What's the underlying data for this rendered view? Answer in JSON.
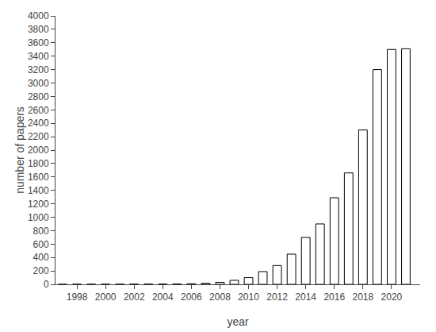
{
  "chart_data": {
    "type": "bar",
    "x": [
      1997,
      1998,
      1999,
      2000,
      2001,
      2002,
      2003,
      2004,
      2005,
      2006,
      2007,
      2008,
      2009,
      2010,
      2011,
      2012,
      2013,
      2014,
      2015,
      2016,
      2017,
      2018,
      2019,
      2020,
      2021
    ],
    "values": [
      1,
      2,
      2,
      3,
      3,
      4,
      4,
      5,
      6,
      8,
      15,
      30,
      60,
      100,
      190,
      280,
      450,
      700,
      900,
      1290,
      1660,
      2300,
      3200,
      3500,
      3510
    ],
    "xlabel": "year",
    "ylabel": "number of papers",
    "xlim": [
      1996.5,
      2022.0
    ],
    "ylim": [
      0,
      4000
    ],
    "xticks": [
      1998,
      2000,
      2002,
      2004,
      2006,
      2008,
      2010,
      2012,
      2014,
      2016,
      2018,
      2020
    ],
    "yticks": [
      0,
      200,
      400,
      600,
      800,
      1000,
      1200,
      1400,
      1600,
      1800,
      2000,
      2200,
      2400,
      2600,
      2800,
      3000,
      3200,
      3400,
      3600,
      3800,
      4000
    ],
    "color": "#ffffff",
    "grid": false
  }
}
